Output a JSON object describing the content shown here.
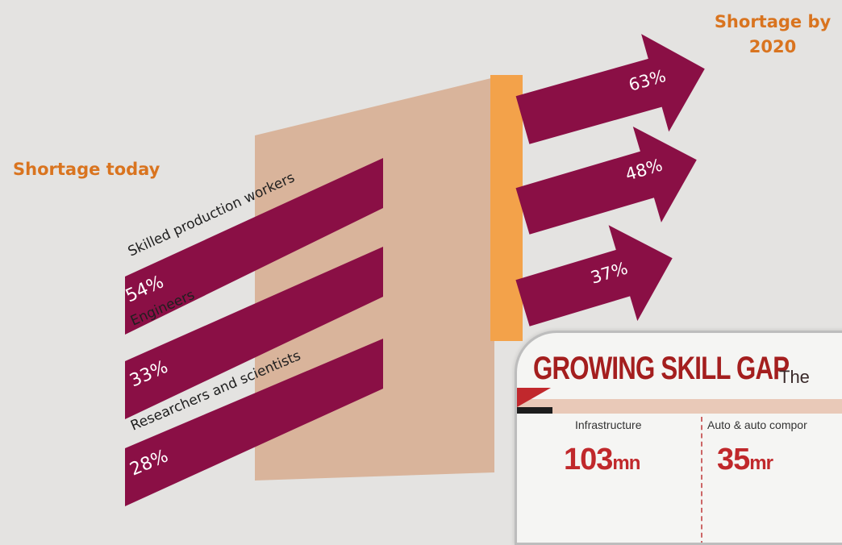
{
  "headings": {
    "today": "Shortage today",
    "future_line1": "Shortage by",
    "future_line2": "2020"
  },
  "chart_data": {
    "type": "bar",
    "categories": [
      "Skilled production workers",
      "Engineers",
      "Researchers and scientists"
    ],
    "series": [
      {
        "name": "Shortage today",
        "values": [
          54,
          33,
          28
        ],
        "labels": [
          "54%",
          "33%",
          "28%"
        ]
      },
      {
        "name": "Shortage by 2020",
        "values": [
          63,
          48,
          37
        ],
        "labels": [
          "63%",
          "48%",
          "37%"
        ]
      }
    ],
    "unit": "%"
  },
  "colors": {
    "background": "#e4e3e1",
    "band": "#8a0f45",
    "panel": "#d9b49b",
    "wall": "#f3a24a",
    "heading": "#d9741f"
  },
  "inset": {
    "title": "GROWING SKILL GAP",
    "title_tail": "The",
    "sectors": [
      {
        "label": "Infrastructure",
        "value": "103",
        "unit": "mn"
      },
      {
        "label": "Auto & auto compor",
        "value": "35",
        "unit": "mr"
      }
    ]
  }
}
